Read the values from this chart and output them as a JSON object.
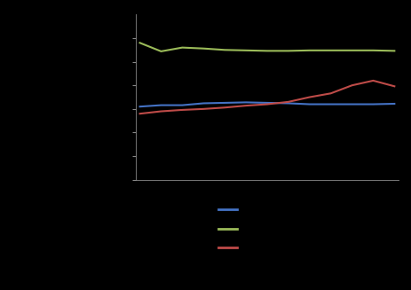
{
  "x": [
    1,
    2,
    3,
    4,
    5,
    6,
    7,
    8,
    9,
    10,
    11,
    12,
    13
  ],
  "blue_line": [
    155,
    158,
    158,
    162,
    163,
    164,
    163,
    162,
    160,
    160,
    160,
    160,
    161
  ],
  "green_line": [
    290,
    272,
    280,
    278,
    275,
    274,
    273,
    273,
    274,
    274,
    274,
    274,
    273
  ],
  "red_line": [
    140,
    145,
    148,
    150,
    153,
    157,
    160,
    165,
    175,
    183,
    200,
    210,
    198
  ],
  "blue_color": "#4472C4",
  "green_color": "#9BBB59",
  "red_color": "#BE4B48",
  "background_color": "#000000",
  "ylim": [
    0,
    350
  ],
  "xlim_min": 0.8,
  "xlim_max": 13.2,
  "line_width": 1.5,
  "spine_color": "#888888",
  "tick_color": "#888888"
}
